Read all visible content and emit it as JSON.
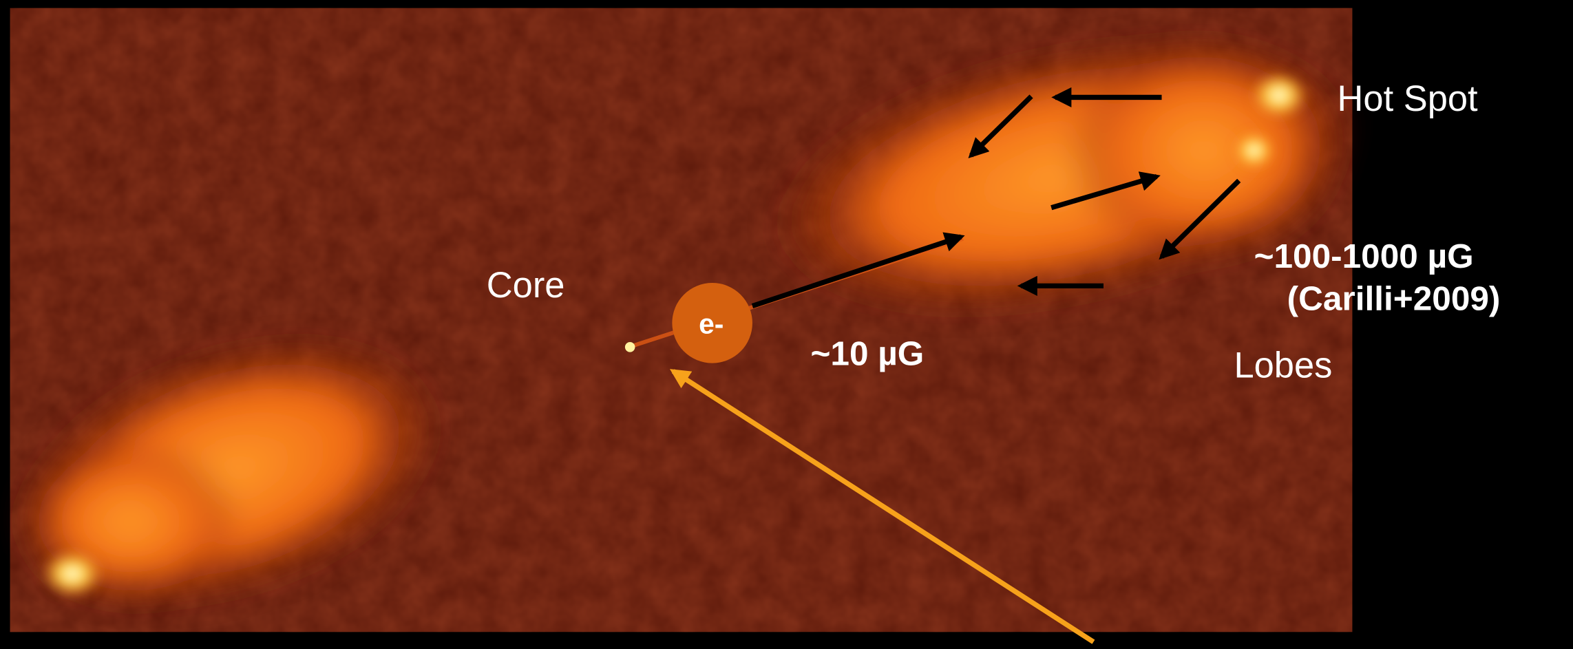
{
  "annotations": {
    "hot_spot": "Hot Spot",
    "core": "Core",
    "electron": "e-",
    "lobe_field": "~10 µG",
    "hotspot_field": "~100-1000 µG",
    "citation": "(Carilli+2009)",
    "lobes": "Lobes"
  }
}
